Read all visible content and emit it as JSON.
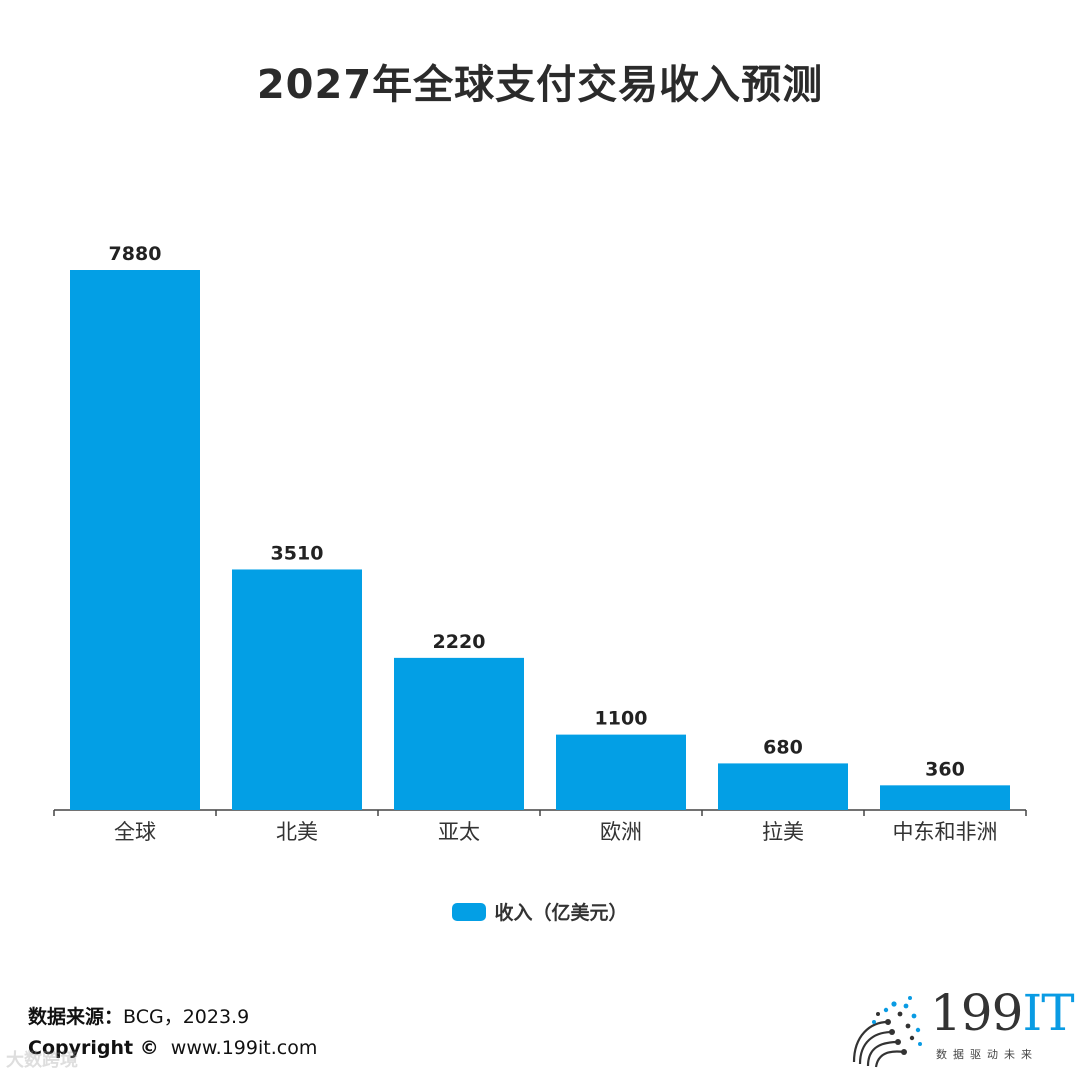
{
  "title": "2027年全球支付交易收入预测",
  "colors": {
    "bar": "#039fe5",
    "axis": "#444444",
    "label": "#222222"
  },
  "chart_data": {
    "type": "bar",
    "title": "2027年全球支付交易收入预测",
    "categories": [
      "全球",
      "北美",
      "亚太",
      "欧洲",
      "拉美",
      "中东和非洲"
    ],
    "series": [
      {
        "name": "收入（亿美元）",
        "values": [
          7880,
          3510,
          2220,
          1100,
          680,
          360
        ]
      }
    ],
    "data_labels": [
      "7880",
      "3510",
      "2220",
      "1100",
      "680",
      "360"
    ],
    "xlabel": "",
    "ylabel": "",
    "ylim": [
      0,
      7880
    ],
    "grid": false,
    "legend": "bottom-center"
  },
  "legend": {
    "label": "收入（亿美元）"
  },
  "footer": {
    "source_label": "数据来源：",
    "source_value": "BCG，2023.9",
    "copyright_label": "Copyright ©",
    "copyright_value": "www.199it.com"
  },
  "watermark": "大数跨境",
  "logo": {
    "text_num": "199",
    "text_it": "IT",
    "tagline": "数据驱动未来"
  }
}
